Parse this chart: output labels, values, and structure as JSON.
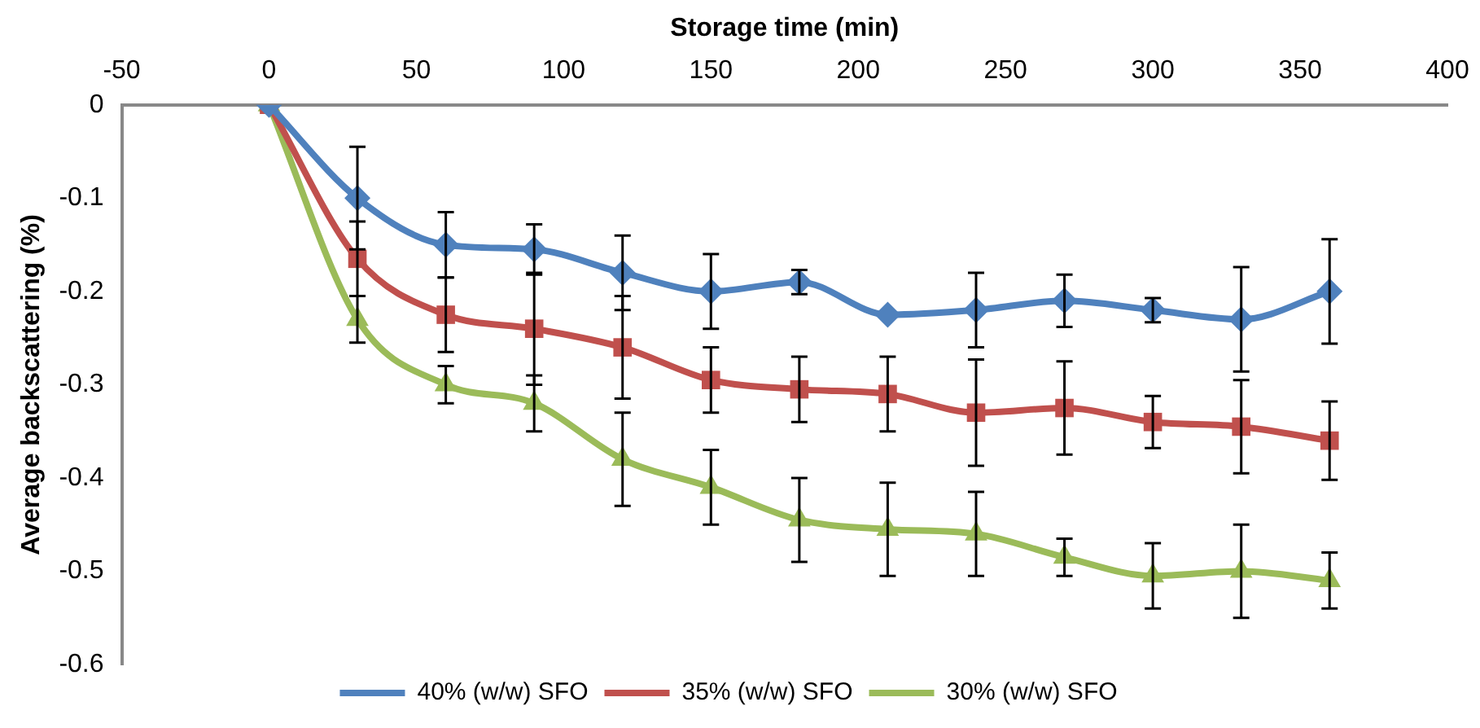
{
  "chart_data": {
    "type": "line",
    "xlabel": "Storage time (min)",
    "ylabel": "Average backscattering (%)",
    "x": [
      0,
      30,
      60,
      90,
      120,
      150,
      180,
      210,
      240,
      270,
      300,
      330,
      360
    ],
    "xlim": [
      -50,
      400
    ],
    "xticks": [
      -50,
      0,
      50,
      100,
      150,
      200,
      250,
      300,
      350,
      400
    ],
    "ylim": [
      -0.6,
      0
    ],
    "yticks": [
      -0.6,
      -0.5,
      -0.4,
      -0.3,
      -0.2,
      -0.1,
      0
    ],
    "grid": false,
    "legend": "bottom",
    "line_style": "solid",
    "series": [
      {
        "name": "40% (w/w) SFO",
        "color": "#4f81bd",
        "marker": "diamond",
        "values": [
          0,
          -0.1,
          -0.15,
          -0.155,
          -0.18,
          -0.2,
          -0.19,
          -0.225,
          -0.22,
          -0.21,
          -0.22,
          -0.23,
          -0.2
        ],
        "errors": [
          null,
          0.055,
          0.035,
          0.027,
          0.04,
          0.04,
          0.013,
          null,
          0.04,
          0.028,
          0.013,
          0.056,
          0.056
        ]
      },
      {
        "name": "35% (w/w) SFO",
        "color": "#c0504d",
        "marker": "square",
        "values": [
          0,
          -0.165,
          -0.225,
          -0.24,
          -0.26,
          -0.295,
          -0.305,
          -0.31,
          -0.33,
          -0.325,
          -0.34,
          -0.345,
          -0.36
        ],
        "errors": [
          null,
          0.04,
          0.04,
          0.06,
          0.055,
          0.035,
          0.035,
          0.04,
          0.057,
          0.05,
          0.028,
          0.05,
          0.042
        ]
      },
      {
        "name": "30% (w/w) SFO",
        "color": "#9bbb59",
        "marker": "triangle",
        "values": [
          0,
          -0.23,
          -0.3,
          -0.32,
          -0.38,
          -0.41,
          -0.445,
          -0.455,
          -0.46,
          -0.485,
          -0.505,
          -0.5,
          -0.51
        ],
        "errors": [
          null,
          0.025,
          0.02,
          0.03,
          0.05,
          0.04,
          0.045,
          0.05,
          0.045,
          0.02,
          0.035,
          0.05,
          0.03
        ]
      }
    ]
  }
}
